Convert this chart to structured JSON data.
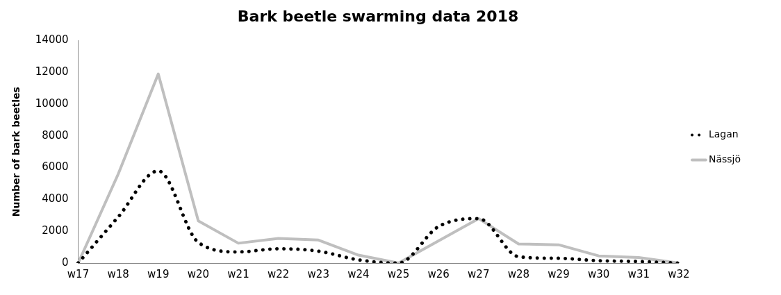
{
  "chart_data": {
    "type": "line",
    "title": "Bark beetle swarming data 2018",
    "ylabel": "Number of bark beetles",
    "categories": [
      "w17",
      "w18",
      "w19",
      "w20",
      "w21",
      "w22",
      "w23",
      "w24",
      "w25",
      "w26",
      "w27",
      "w28",
      "w29",
      "w30",
      "w31",
      "w32"
    ],
    "series": [
      {
        "name": "Lagan",
        "color": "#000000",
        "line_style": "dotted",
        "values": [
          0,
          2900,
          5800,
          1300,
          700,
          900,
          750,
          200,
          0,
          2300,
          2800,
          400,
          300,
          150,
          100,
          0
        ]
      },
      {
        "name": "Nässjö",
        "color": "#bfbfbf",
        "line_style": "solid",
        "values": [
          0,
          5600,
          11900,
          2650,
          1250,
          1550,
          1450,
          500,
          0,
          1400,
          2800,
          1200,
          1150,
          450,
          350,
          0
        ]
      }
    ],
    "ylim": [
      0,
      14000
    ],
    "yticks": [
      0,
      2000,
      4000,
      6000,
      8000,
      10000,
      12000,
      14000
    ],
    "grid": false,
    "legend": "right",
    "marker": "none"
  }
}
